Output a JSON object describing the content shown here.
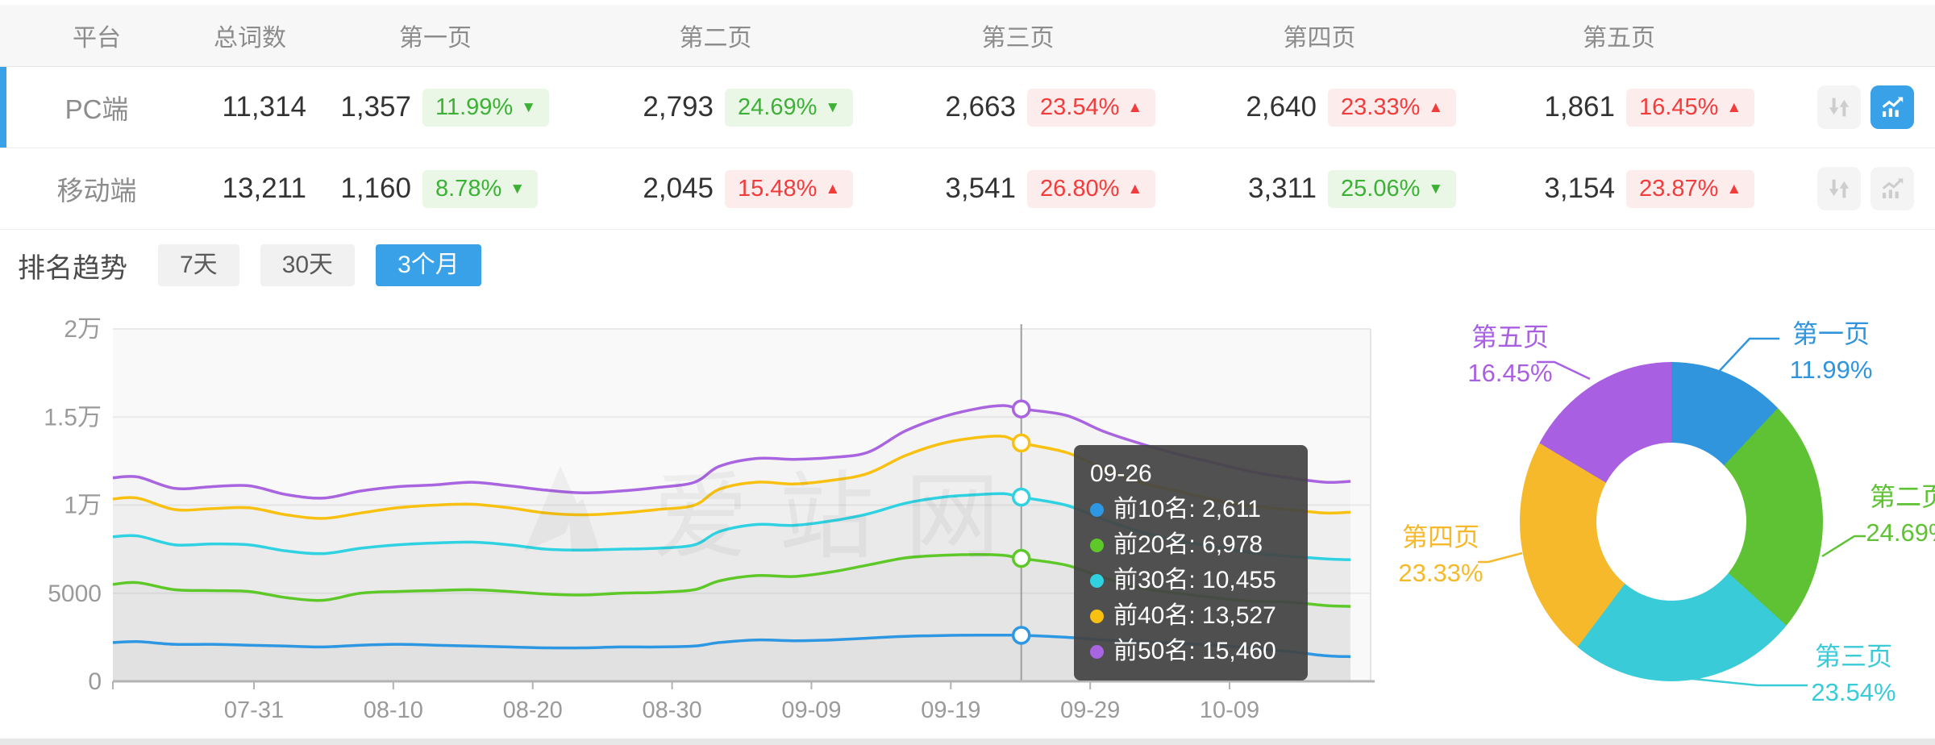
{
  "table": {
    "headers": [
      "平台",
      "总词数",
      "第一页",
      "第二页",
      "第三页",
      "第四页",
      "第五页"
    ],
    "rows": [
      {
        "platform": "PC端",
        "total": "11,314",
        "selected": true,
        "trend_active": true,
        "pages": [
          {
            "count": "1,357",
            "pct": "11.99%",
            "dir": "down",
            "tone": "good"
          },
          {
            "count": "2,793",
            "pct": "24.69%",
            "dir": "down",
            "tone": "good"
          },
          {
            "count": "2,663",
            "pct": "23.54%",
            "dir": "up",
            "tone": "bad"
          },
          {
            "count": "2,640",
            "pct": "23.33%",
            "dir": "up",
            "tone": "bad"
          },
          {
            "count": "1,861",
            "pct": "16.45%",
            "dir": "up",
            "tone": "bad"
          }
        ]
      },
      {
        "platform": "移动端",
        "total": "13,211",
        "selected": false,
        "trend_active": false,
        "pages": [
          {
            "count": "1,160",
            "pct": "8.78%",
            "dir": "down",
            "tone": "good"
          },
          {
            "count": "2,045",
            "pct": "15.48%",
            "dir": "up",
            "tone": "bad"
          },
          {
            "count": "3,541",
            "pct": "26.80%",
            "dir": "up",
            "tone": "bad"
          },
          {
            "count": "3,311",
            "pct": "25.06%",
            "dir": "down",
            "tone": "good"
          },
          {
            "count": "3,154",
            "pct": "23.87%",
            "dir": "up",
            "tone": "bad"
          }
        ]
      }
    ]
  },
  "trend_section": {
    "title": "排名趋势",
    "ranges": [
      "7天",
      "30天",
      "3个月"
    ],
    "active": "3个月"
  },
  "watermark": "爱站网",
  "colors": {
    "accent_blue": "#38a1e8",
    "badge_green": "#3cb135",
    "badge_red": "#f23c3c"
  },
  "tooltip": {
    "date": "09-26",
    "items": [
      {
        "label": "前10名",
        "value": "2,611",
        "color": "#2e97e2"
      },
      {
        "label": "前20名",
        "value": "6,978",
        "color": "#5ec829"
      },
      {
        "label": "前30名",
        "value": "10,455",
        "color": "#30d2e2"
      },
      {
        "label": "前40名",
        "value": "13,527",
        "color": "#f8c112"
      },
      {
        "label": "前50名",
        "value": "15,460",
        "color": "#a964e0"
      }
    ]
  },
  "chart_data": [
    {
      "type": "line",
      "title": "排名趋势 3个月",
      "x_ticks": [
        "07-31",
        "08-10",
        "08-20",
        "08-30",
        "09-09",
        "09-19",
        "09-29",
        "10-09"
      ],
      "y_ticks": [
        "2万",
        "1.5万",
        "1万",
        "5000",
        "0"
      ],
      "ylim": [
        0,
        20000
      ],
      "grid": true,
      "crosshair_t": 0.734,
      "crosshair_date": "09-26",
      "series": [
        {
          "name": "前10名",
          "color": "#2e97e2",
          "points": [
            [
              0,
              2200
            ],
            [
              0.02,
              2250
            ],
            [
              0.05,
              2100
            ],
            [
              0.08,
              2100
            ],
            [
              0.11,
              2050
            ],
            [
              0.14,
              2000
            ],
            [
              0.17,
              1950
            ],
            [
              0.2,
              2050
            ],
            [
              0.23,
              2100
            ],
            [
              0.26,
              2050
            ],
            [
              0.29,
              2000
            ],
            [
              0.32,
              1950
            ],
            [
              0.35,
              1900
            ],
            [
              0.38,
              1900
            ],
            [
              0.41,
              1950
            ],
            [
              0.44,
              1950
            ],
            [
              0.47,
              2000
            ],
            [
              0.49,
              2200
            ],
            [
              0.52,
              2350
            ],
            [
              0.55,
              2300
            ],
            [
              0.58,
              2350
            ],
            [
              0.61,
              2450
            ],
            [
              0.64,
              2550
            ],
            [
              0.67,
              2600
            ],
            [
              0.7,
              2620
            ],
            [
              0.72,
              2620
            ],
            [
              0.734,
              2611
            ],
            [
              0.77,
              2500
            ],
            [
              0.8,
              2350
            ],
            [
              0.83,
              2250
            ],
            [
              0.86,
              2150
            ],
            [
              0.89,
              2050
            ],
            [
              0.92,
              1900
            ],
            [
              0.95,
              1700
            ],
            [
              0.98,
              1450
            ],
            [
              1,
              1400
            ]
          ]
        },
        {
          "name": "前20名",
          "color": "#5ec829",
          "points": [
            [
              0,
              5500
            ],
            [
              0.02,
              5600
            ],
            [
              0.05,
              5200
            ],
            [
              0.08,
              5150
            ],
            [
              0.11,
              5100
            ],
            [
              0.14,
              4750
            ],
            [
              0.17,
              4600
            ],
            [
              0.2,
              5000
            ],
            [
              0.23,
              5100
            ],
            [
              0.26,
              5150
            ],
            [
              0.29,
              5200
            ],
            [
              0.32,
              5100
            ],
            [
              0.35,
              4950
            ],
            [
              0.38,
              4900
            ],
            [
              0.41,
              5000
            ],
            [
              0.44,
              5050
            ],
            [
              0.47,
              5200
            ],
            [
              0.49,
              5700
            ],
            [
              0.52,
              6000
            ],
            [
              0.55,
              5950
            ],
            [
              0.58,
              6200
            ],
            [
              0.61,
              6600
            ],
            [
              0.64,
              7000
            ],
            [
              0.67,
              7150
            ],
            [
              0.7,
              7200
            ],
            [
              0.72,
              7150
            ],
            [
              0.734,
              6978
            ],
            [
              0.77,
              6600
            ],
            [
              0.8,
              5900
            ],
            [
              0.83,
              5300
            ],
            [
              0.86,
              5000
            ],
            [
              0.89,
              4750
            ],
            [
              0.92,
              4550
            ],
            [
              0.95,
              4500
            ],
            [
              0.98,
              4300
            ],
            [
              1,
              4250
            ]
          ]
        },
        {
          "name": "前30名",
          "color": "#30d2e2",
          "points": [
            [
              0,
              8200
            ],
            [
              0.02,
              8250
            ],
            [
              0.05,
              7750
            ],
            [
              0.08,
              7800
            ],
            [
              0.11,
              7750
            ],
            [
              0.14,
              7400
            ],
            [
              0.17,
              7250
            ],
            [
              0.2,
              7550
            ],
            [
              0.23,
              7750
            ],
            [
              0.26,
              7850
            ],
            [
              0.29,
              7900
            ],
            [
              0.32,
              7750
            ],
            [
              0.35,
              7500
            ],
            [
              0.38,
              7450
            ],
            [
              0.41,
              7500
            ],
            [
              0.44,
              7550
            ],
            [
              0.47,
              7750
            ],
            [
              0.49,
              8500
            ],
            [
              0.52,
              8900
            ],
            [
              0.55,
              8850
            ],
            [
              0.58,
              9100
            ],
            [
              0.61,
              9500
            ],
            [
              0.64,
              10100
            ],
            [
              0.67,
              10450
            ],
            [
              0.7,
              10600
            ],
            [
              0.72,
              10650
            ],
            [
              0.734,
              10455
            ],
            [
              0.77,
              10000
            ],
            [
              0.8,
              9200
            ],
            [
              0.83,
              8500
            ],
            [
              0.86,
              8000
            ],
            [
              0.89,
              7650
            ],
            [
              0.92,
              7300
            ],
            [
              0.95,
              7100
            ],
            [
              0.98,
              6950
            ],
            [
              1,
              6900
            ]
          ]
        },
        {
          "name": "前40名",
          "color": "#f8c112",
          "points": [
            [
              0,
              10350
            ],
            [
              0.02,
              10400
            ],
            [
              0.05,
              9750
            ],
            [
              0.08,
              9800
            ],
            [
              0.11,
              9850
            ],
            [
              0.14,
              9450
            ],
            [
              0.17,
              9250
            ],
            [
              0.2,
              9550
            ],
            [
              0.23,
              9850
            ],
            [
              0.26,
              10000
            ],
            [
              0.29,
              10050
            ],
            [
              0.32,
              9850
            ],
            [
              0.35,
              9550
            ],
            [
              0.38,
              9450
            ],
            [
              0.41,
              9550
            ],
            [
              0.44,
              9750
            ],
            [
              0.47,
              10000
            ],
            [
              0.49,
              10900
            ],
            [
              0.52,
              11300
            ],
            [
              0.55,
              11200
            ],
            [
              0.58,
              11400
            ],
            [
              0.61,
              11800
            ],
            [
              0.64,
              12800
            ],
            [
              0.67,
              13500
            ],
            [
              0.7,
              13850
            ],
            [
              0.72,
              13900
            ],
            [
              0.734,
              13527
            ],
            [
              0.77,
              13000
            ],
            [
              0.8,
              12100
            ],
            [
              0.83,
              11300
            ],
            [
              0.86,
              10800
            ],
            [
              0.89,
              10300
            ],
            [
              0.92,
              9950
            ],
            [
              0.95,
              9750
            ],
            [
              0.98,
              9550
            ],
            [
              1,
              9600
            ]
          ]
        },
        {
          "name": "前50名",
          "color": "#a964e0",
          "points": [
            [
              0,
              11550
            ],
            [
              0.02,
              11600
            ],
            [
              0.05,
              10950
            ],
            [
              0.08,
              11050
            ],
            [
              0.11,
              11100
            ],
            [
              0.14,
              10600
            ],
            [
              0.17,
              10400
            ],
            [
              0.2,
              10800
            ],
            [
              0.23,
              11050
            ],
            [
              0.26,
              11150
            ],
            [
              0.29,
              11300
            ],
            [
              0.32,
              11100
            ],
            [
              0.35,
              10850
            ],
            [
              0.38,
              10700
            ],
            [
              0.41,
              10800
            ],
            [
              0.44,
              11000
            ],
            [
              0.47,
              11300
            ],
            [
              0.49,
              12200
            ],
            [
              0.52,
              12650
            ],
            [
              0.55,
              12600
            ],
            [
              0.58,
              12700
            ],
            [
              0.61,
              13000
            ],
            [
              0.64,
              14200
            ],
            [
              0.67,
              15000
            ],
            [
              0.7,
              15500
            ],
            [
              0.72,
              15650
            ],
            [
              0.734,
              15460
            ],
            [
              0.77,
              15100
            ],
            [
              0.8,
              14200
            ],
            [
              0.83,
              13500
            ],
            [
              0.86,
              12900
            ],
            [
              0.89,
              12400
            ],
            [
              0.92,
              11900
            ],
            [
              0.95,
              11550
            ],
            [
              0.98,
              11300
            ],
            [
              1,
              11350
            ]
          ]
        }
      ]
    },
    {
      "type": "donut",
      "slices": [
        {
          "label": "第一页",
          "pct": 11.99,
          "color": "#3095dc"
        },
        {
          "label": "第二页",
          "pct": 24.69,
          "color": "#5fc234"
        },
        {
          "label": "第三页",
          "pct": 23.54,
          "color": "#3acbd8"
        },
        {
          "label": "第四页",
          "pct": 23.33,
          "color": "#f5b92b"
        },
        {
          "label": "第五页",
          "pct": 16.45,
          "color": "#a95fe2"
        }
      ]
    }
  ]
}
